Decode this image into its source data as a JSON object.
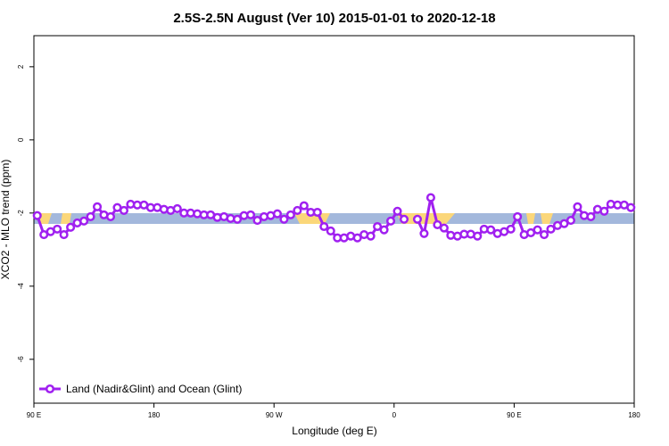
{
  "chart_data": {
    "type": "line",
    "title": "2.5S-2.5N August (Ver 10)   2015-01-01 to 2020-12-18",
    "x_label": "Longitude (deg E)",
    "y_label": "XCO2 - MLO trend (ppm)",
    "xlim": [
      90,
      540
    ],
    "xticks": [
      {
        "value": 90,
        "label": "90 E"
      },
      180,
      {
        "value": 270,
        "label": "90 W"
      },
      {
        "value": 360,
        "label": "0"
      },
      {
        "value": 450,
        "label": "90 E"
      },
      {
        "value": 540,
        "label": "180"
      }
    ],
    "ylim": [
      -7.2,
      2.85
    ],
    "yticks": [
      2,
      0,
      -2,
      -4,
      -6
    ],
    "legend": "bottom-left",
    "x": [
      92.5,
      97.5,
      102.5,
      107.5,
      112.5,
      117.5,
      122.5,
      127.5,
      132.5,
      137.5,
      142.5,
      147.5,
      152.5,
      157.5,
      162.5,
      167.5,
      172.5,
      177.5,
      182.5,
      187.5,
      192.5,
      197.5,
      202.5,
      207.5,
      212.5,
      217.5,
      222.5,
      227.5,
      232.5,
      237.5,
      242.5,
      247.5,
      252.5,
      257.5,
      262.5,
      267.5,
      272.5,
      277.5,
      282.5,
      287.5,
      292.5,
      297.5,
      302.5,
      307.5,
      312.5,
      317.5,
      322.5,
      327.5,
      332.5,
      337.5,
      342.5,
      347.5,
      352.5,
      357.5,
      362.5,
      367.5,
      372.5,
      377.5,
      382.5,
      387.5,
      392.5,
      397.5,
      402.5,
      407.5,
      412.5,
      417.5,
      422.5,
      427.5,
      432.5,
      437.5,
      442.5,
      447.5,
      452.5,
      457.5,
      462.5,
      467.5,
      472.5,
      477.5,
      482.5,
      487.5,
      492.5,
      497.5,
      502.5,
      507.5,
      512.5,
      517.5,
      522.5,
      527.5,
      532.5,
      537.5
    ],
    "series": [
      {
        "name": "Land (Nadir&Glint) and Ocean (Glint)",
        "color": "#a020f0",
        "values": [
          -2.07,
          -2.59,
          -2.51,
          -2.44,
          -2.59,
          -2.39,
          -2.27,
          -2.22,
          -2.1,
          -1.83,
          -2.05,
          -2.1,
          -1.85,
          -1.93,
          -1.76,
          -1.78,
          -1.78,
          -1.85,
          -1.85,
          -1.9,
          -1.93,
          -1.88,
          -2.0,
          -2.0,
          -2.02,
          -2.05,
          -2.05,
          -2.12,
          -2.1,
          -2.15,
          -2.17,
          -2.07,
          -2.05,
          -2.2,
          -2.1,
          -2.07,
          -2.02,
          -2.17,
          -2.05,
          -1.93,
          -1.8,
          -1.98,
          -1.98,
          -2.37,
          -2.49,
          -2.68,
          -2.68,
          -2.63,
          -2.68,
          -2.59,
          -2.63,
          -2.37,
          -2.46,
          -2.22,
          -1.95,
          -2.17,
          null,
          -2.17,
          -2.56,
          -1.58,
          -2.32,
          -2.41,
          -2.61,
          -2.63,
          -2.58,
          -2.58,
          -2.63,
          -2.44,
          -2.46,
          -2.56,
          -2.51,
          -2.44,
          -2.1,
          -2.59,
          -2.54,
          -2.46,
          -2.59,
          -2.44,
          -2.34,
          -2.29,
          -2.2,
          -1.83,
          -2.07,
          -2.1,
          -1.9,
          -1.95,
          -1.76,
          -1.78,
          -1.78,
          -1.85
        ]
      }
    ]
  }
}
